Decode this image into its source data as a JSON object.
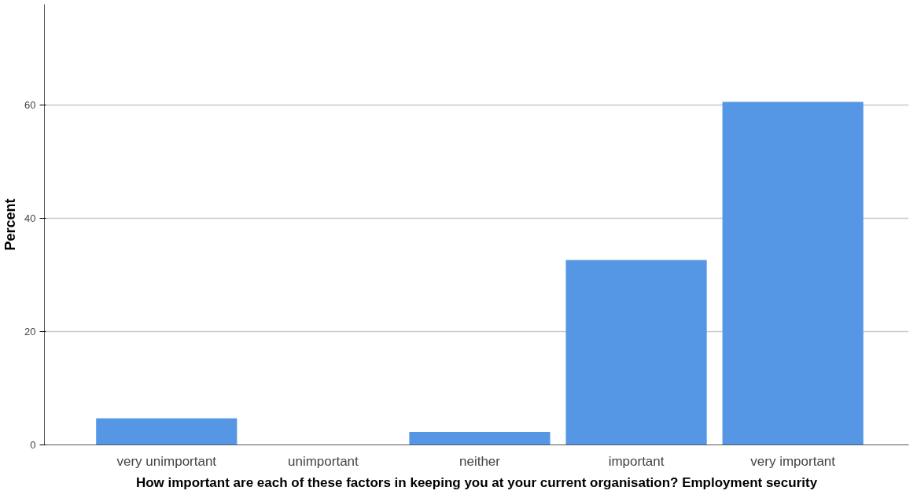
{
  "chart_data": {
    "type": "bar",
    "xlabel": "How important are each of these factors in keeping you at your current organisation? Employment security",
    "ylabel": "Percent",
    "categories": [
      "very unimportant",
      "unimportant",
      "neither",
      "important",
      "very important"
    ],
    "values": [
      4.7,
      0,
      2.3,
      32.6,
      60.5
    ],
    "color": "#5597e4",
    "ylim": [
      0,
      77.7
    ],
    "yticks": [
      0,
      20,
      40,
      60
    ],
    "grid": "y"
  }
}
